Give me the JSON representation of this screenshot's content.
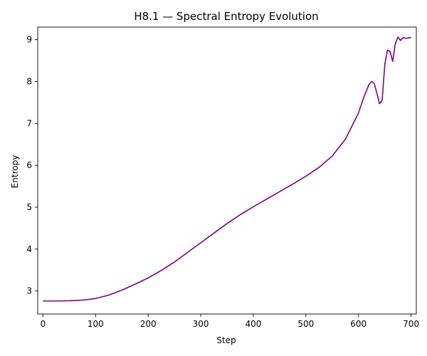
{
  "chart_data": {
    "type": "line",
    "title": "H8.1 — Spectral Entropy Evolution",
    "xlabel": "Step",
    "ylabel": "Entropy",
    "xlim": [
      -10,
      710
    ],
    "ylim": [
      2.45,
      9.3
    ],
    "xticks": [
      0,
      100,
      200,
      300,
      400,
      500,
      600,
      700
    ],
    "yticks": [
      3,
      4,
      5,
      6,
      7,
      8,
      9
    ],
    "grid": false,
    "series": [
      {
        "color": "#800080",
        "x": [
          0,
          25,
          50,
          75,
          100,
          125,
          150,
          175,
          200,
          225,
          250,
          275,
          300,
          325,
          350,
          375,
          400,
          425,
          450,
          475,
          500,
          525,
          550,
          575,
          600,
          610,
          620,
          625,
          630,
          635,
          640,
          645,
          650,
          655,
          660,
          665,
          670,
          675,
          680,
          685,
          690,
          695,
          700
        ],
        "y": [
          2.76,
          2.76,
          2.765,
          2.78,
          2.82,
          2.9,
          3.02,
          3.16,
          3.31,
          3.49,
          3.69,
          3.92,
          4.15,
          4.38,
          4.61,
          4.82,
          5.01,
          5.19,
          5.37,
          5.55,
          5.74,
          5.95,
          6.22,
          6.62,
          7.25,
          7.62,
          7.93,
          8.0,
          7.95,
          7.72,
          7.47,
          7.55,
          8.4,
          8.75,
          8.72,
          8.48,
          8.9,
          9.06,
          8.98,
          9.05,
          9.03,
          9.04,
          9.05
        ]
      }
    ]
  }
}
